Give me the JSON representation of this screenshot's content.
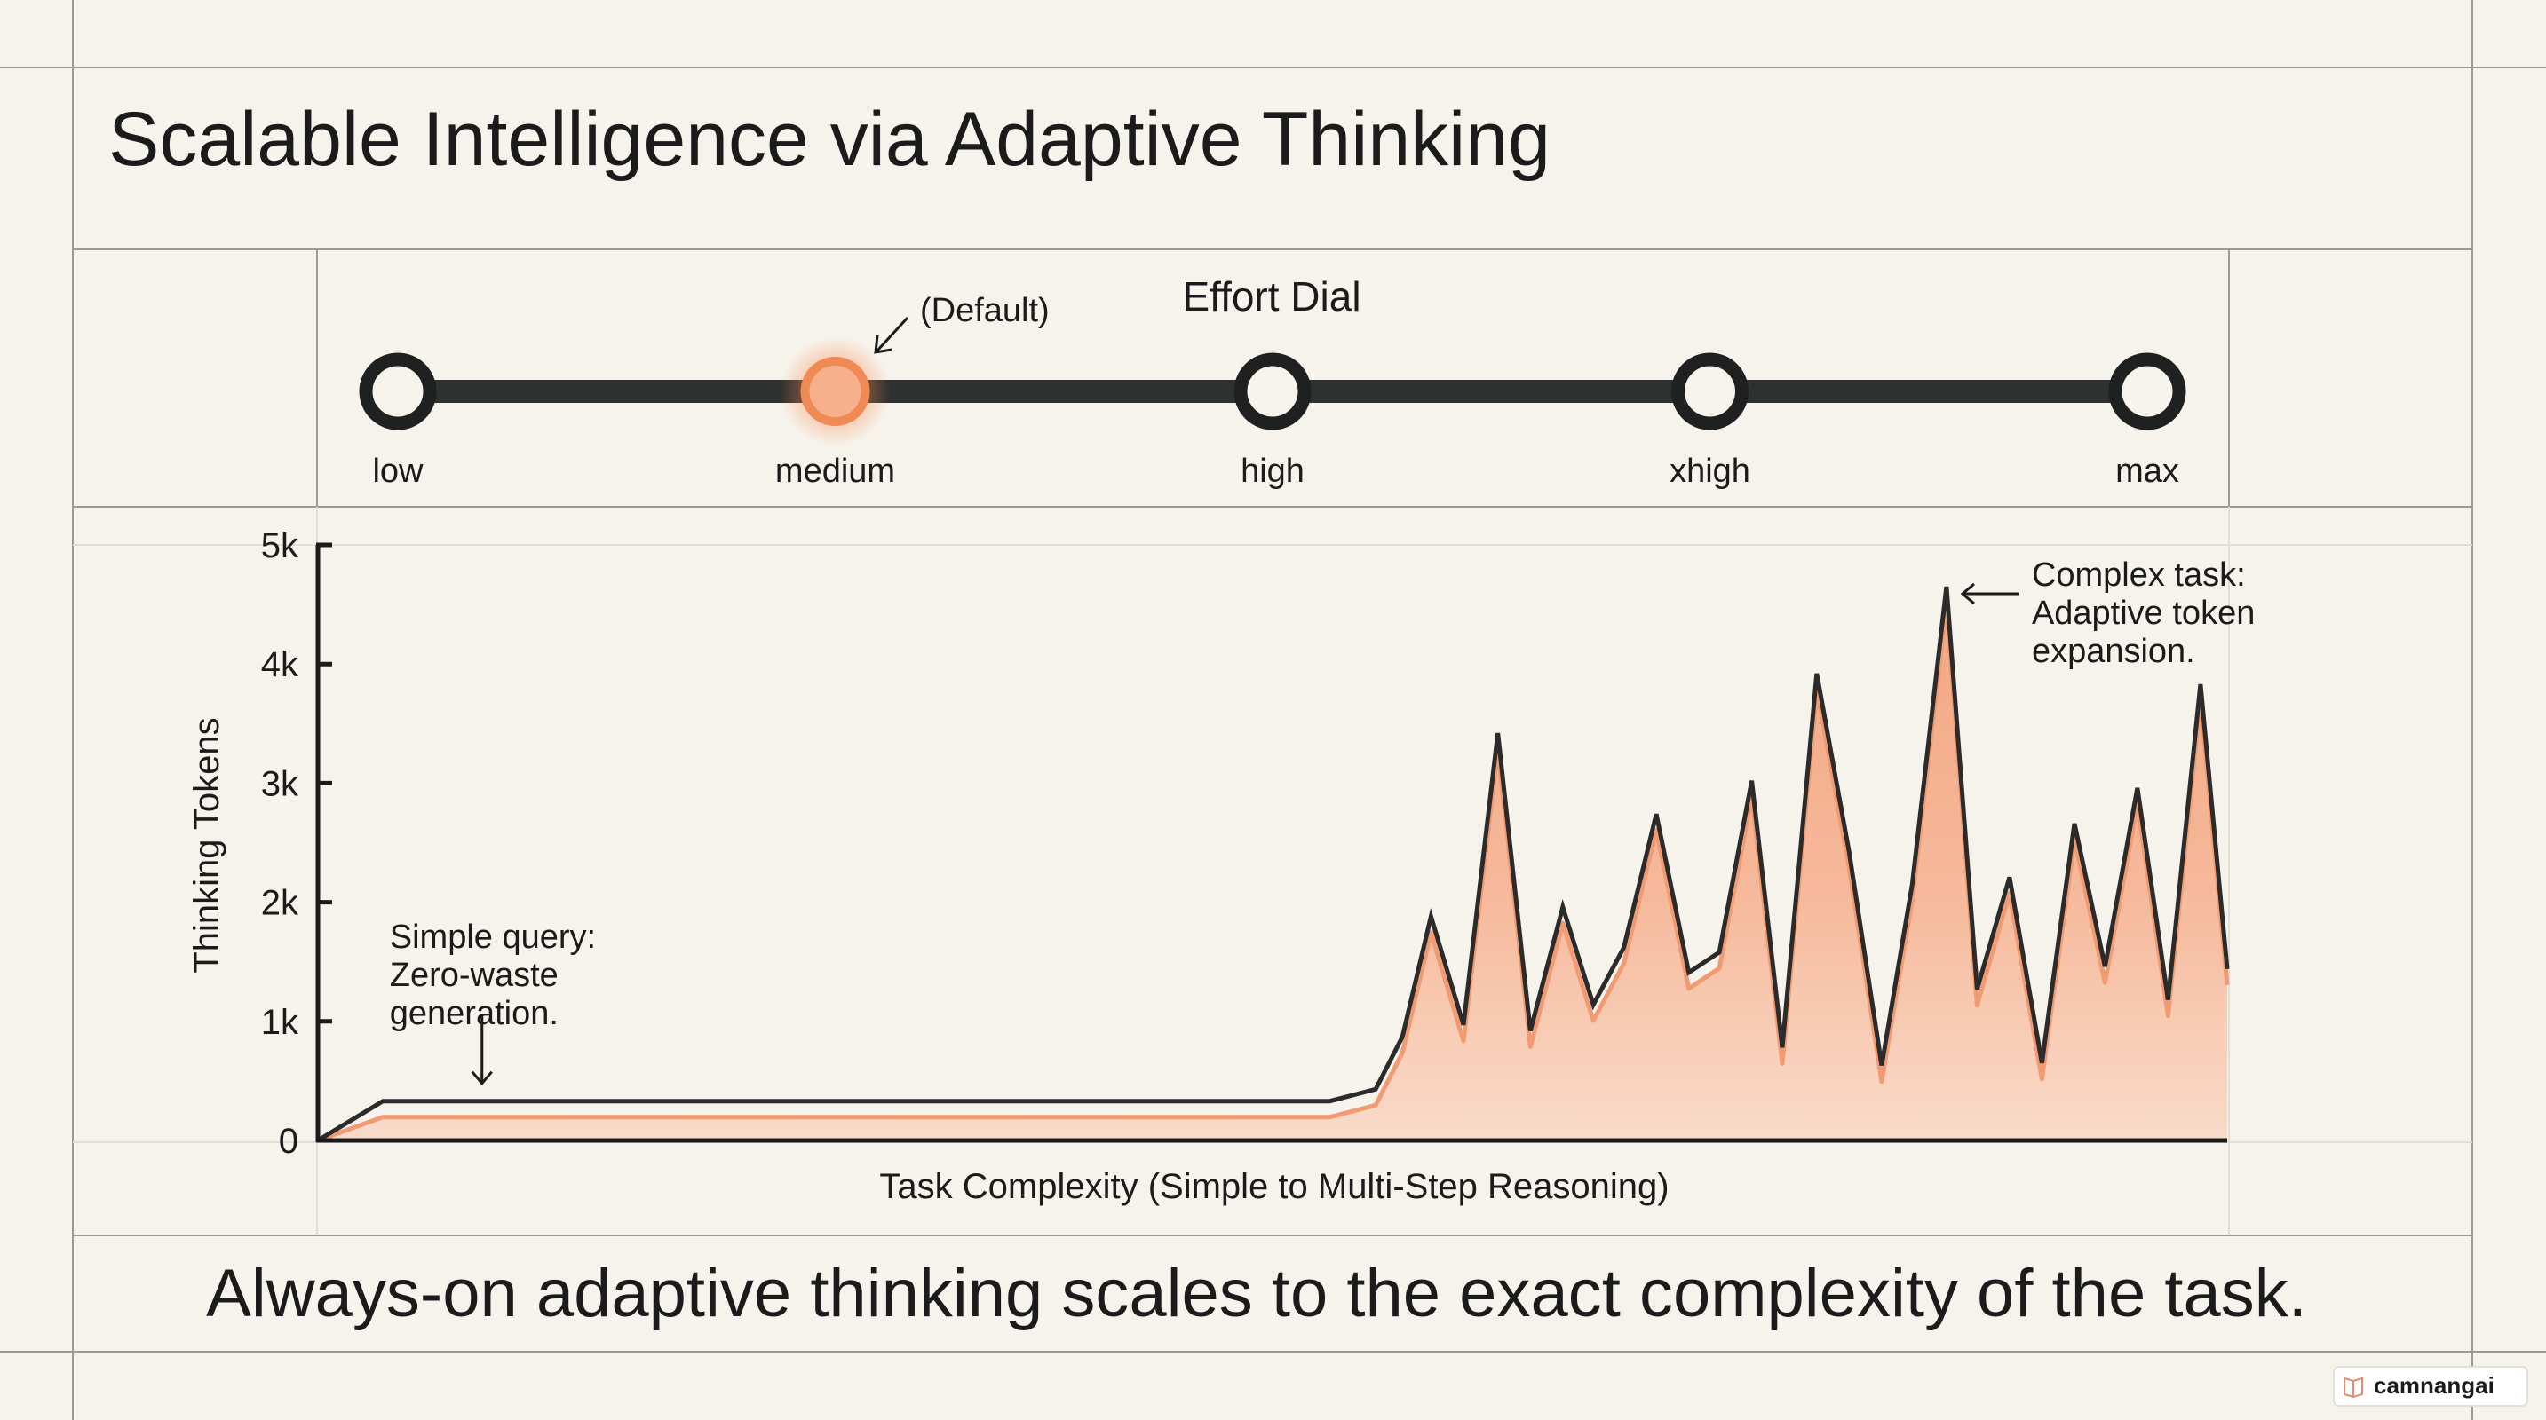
{
  "title": "Scalable Intelligence via Adaptive Thinking",
  "dial": {
    "title": "Effort Dial",
    "default_label": "(Default)",
    "default_index": 1,
    "levels": [
      "low",
      "medium",
      "high",
      "xhigh",
      "max"
    ]
  },
  "chart_data": {
    "type": "area",
    "title": "",
    "xlabel": "Task Complexity (Simple to Multi-Step Reasoning)",
    "ylabel": "Thinking Tokens",
    "ylim": [
      0,
      5000
    ],
    "yticks": [
      0,
      1000,
      2000,
      3000,
      4000,
      5000
    ],
    "ytick_labels": [
      "0",
      "1k",
      "2k",
      "3k",
      "4k",
      "5k"
    ],
    "xlim": [
      0,
      100
    ],
    "grid": false,
    "series": [
      {
        "points": [
          [
            0,
            0
          ],
          [
            3.4,
            330
          ],
          [
            53,
            330
          ],
          [
            55.4,
            430
          ],
          [
            56.8,
            870
          ],
          [
            58.3,
            1880
          ],
          [
            60.0,
            970
          ],
          [
            61.8,
            3420
          ],
          [
            63.5,
            920
          ],
          [
            65.2,
            1960
          ],
          [
            66.8,
            1140
          ],
          [
            68.4,
            1620
          ],
          [
            70.1,
            2740
          ],
          [
            71.8,
            1410
          ],
          [
            73.4,
            1580
          ],
          [
            75.1,
            3020
          ],
          [
            76.7,
            780
          ],
          [
            78.5,
            3920
          ],
          [
            80.2,
            2420
          ],
          [
            81.9,
            630
          ],
          [
            83.5,
            2150
          ],
          [
            85.3,
            4650
          ],
          [
            86.9,
            1270
          ],
          [
            88.6,
            2210
          ],
          [
            90.3,
            650
          ],
          [
            92.0,
            2660
          ],
          [
            93.6,
            1460
          ],
          [
            95.3,
            2960
          ],
          [
            96.9,
            1180
          ],
          [
            98.6,
            3830
          ],
          [
            100,
            1440
          ]
        ]
      }
    ],
    "annotations": [
      {
        "lines": [
          "Simple query:",
          "Zero-waste",
          "generation."
        ],
        "x": 8.5,
        "y": 330,
        "arrow": "down"
      },
      {
        "lines": [
          "Complex task:",
          "Adaptive token",
          "expansion."
        ],
        "x": 85.3,
        "y": 4650,
        "arrow": "left"
      }
    ]
  },
  "footer": {
    "caption": "Always-on adaptive thinking scales to the exact complexity of the task.",
    "watermark": "camnangai"
  },
  "colors": {
    "background": "#f6f3ec",
    "ink": "#1b1b1b",
    "accent": "#f08a55",
    "fill": "#f6b394",
    "grid_line": "#8f8f8f"
  }
}
